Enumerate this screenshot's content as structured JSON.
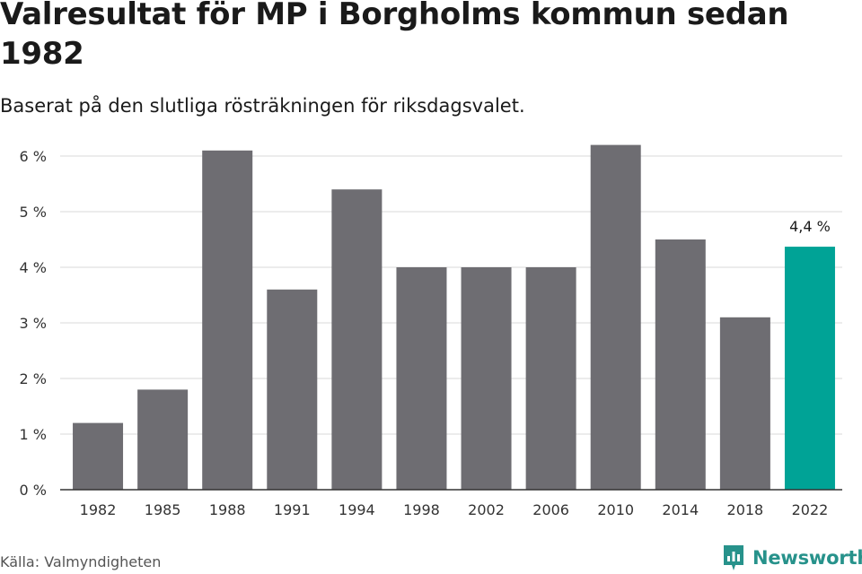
{
  "title": "Valresultat för MP i Borgholms kommun sedan 1982",
  "subtitle": "Baserat på den slutliga rösträkningen för riksdagsvalet.",
  "source": "Källa: Valmyndigheten",
  "brand": "Newsworthy",
  "colors": {
    "bar": "#6e6d72",
    "highlight": "#00a396",
    "grid": "#d8d8d8",
    "axis": "#333333",
    "brand": "#27928b"
  },
  "chart_data": {
    "type": "bar",
    "categories": [
      "1982",
      "1985",
      "1988",
      "1991",
      "1994",
      "1998",
      "2002",
      "2006",
      "2010",
      "2014",
      "2018",
      "2022"
    ],
    "values": [
      1.2,
      1.8,
      6.1,
      3.6,
      5.4,
      4.0,
      4.0,
      4.0,
      6.2,
      4.5,
      3.1,
      4.37
    ],
    "yticks": [
      "0 %",
      "1 %",
      "2 %",
      "3 %",
      "4 %",
      "5 %",
      "6 %"
    ],
    "ylim": [
      0,
      6.2
    ],
    "grid": true,
    "highlight_index": 11,
    "annotation": "4,4 %"
  }
}
